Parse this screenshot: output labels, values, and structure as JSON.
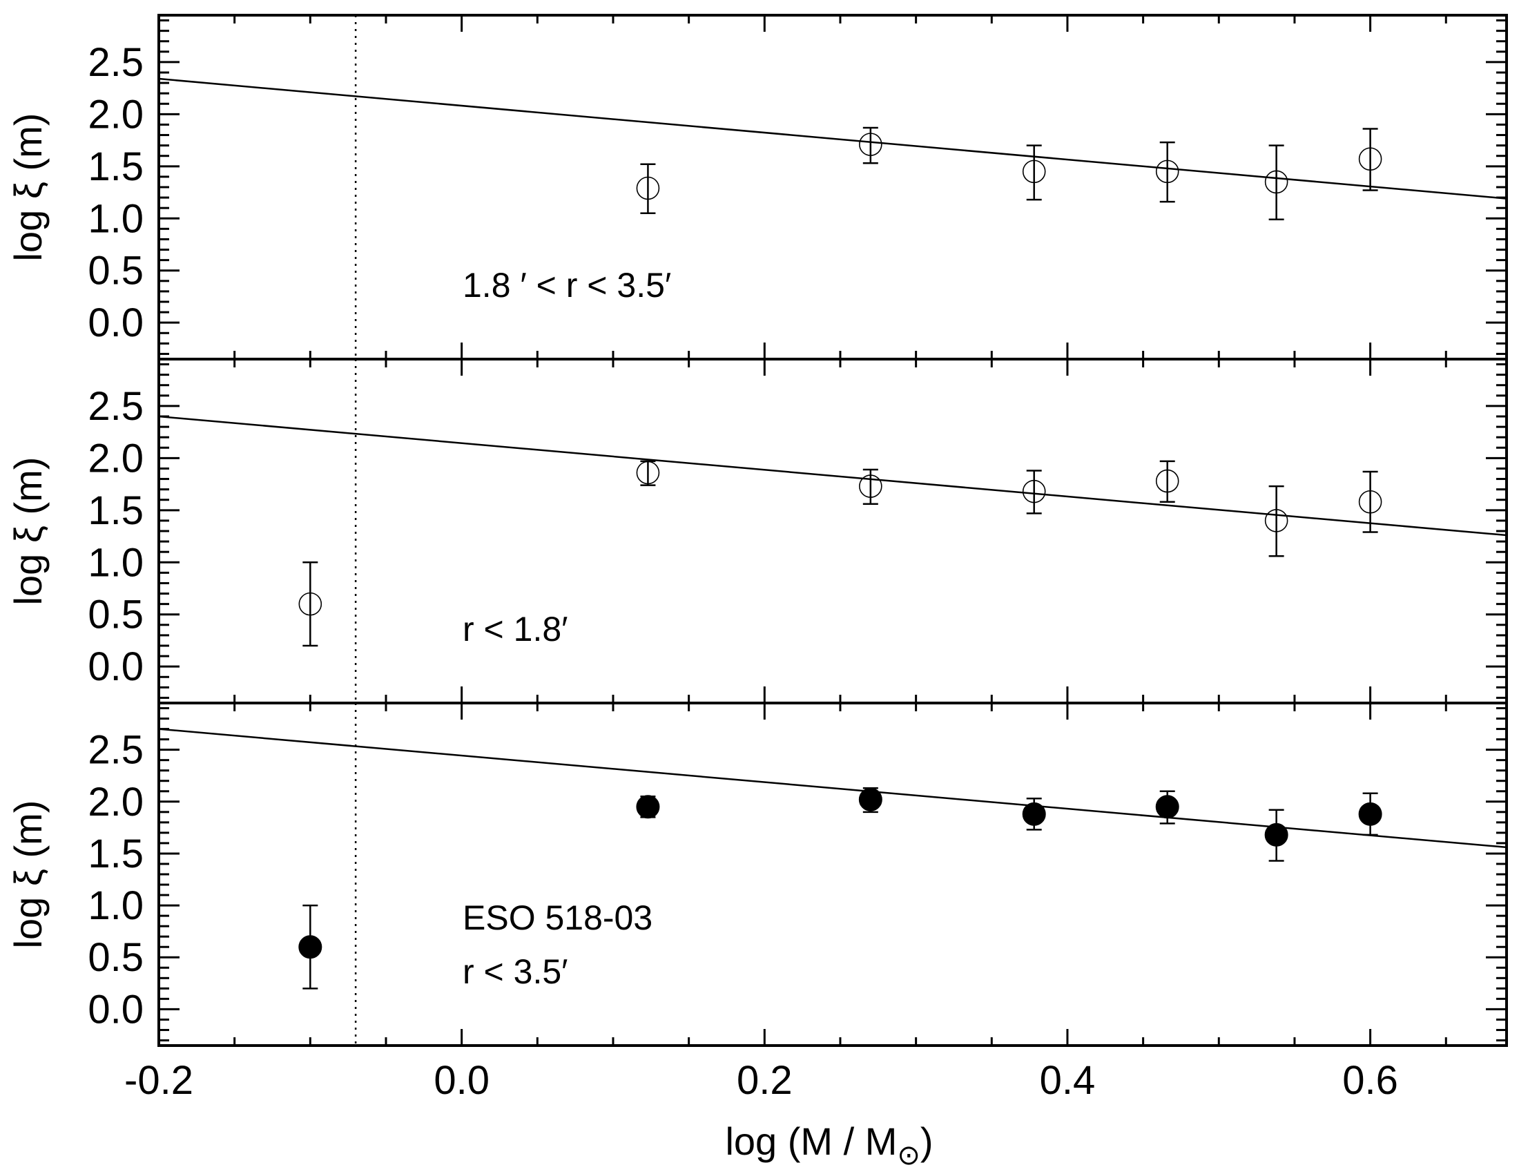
{
  "chart_data": {
    "type": "scatter",
    "x": [
      -0.1,
      0.123,
      0.27,
      0.378,
      0.466,
      0.538,
      0.6
    ],
    "xlabel": "log (M / M",
    "xlabel_sub": "⊙",
    "xlabel_close": ")",
    "xlim": [
      -0.2,
      0.69
    ],
    "xticks": [
      -0.2,
      0.0,
      0.2,
      0.4,
      0.6
    ],
    "xtick_labels": [
      "-0.2",
      "0.0",
      "0.2",
      "0.4",
      "0.6"
    ],
    "ylim": [
      -0.35,
      2.95
    ],
    "yticks": [
      0.0,
      0.5,
      1.0,
      1.5,
      2.0,
      2.5
    ],
    "ytick_labels": [
      "0.0",
      "0.5",
      "1.0",
      "1.5",
      "2.0",
      "2.5"
    ],
    "ylabel": "log ξ (m)",
    "vline_x": -0.07,
    "panels": [
      {
        "label_lines": [
          "1.8 ′ <  r  <  3.5′"
        ],
        "marker": "open",
        "points": [
          {
            "x": 0.123,
            "y": 1.29,
            "lo": 1.05,
            "hi": 1.52
          },
          {
            "x": 0.27,
            "y": 1.71,
            "lo": 1.53,
            "hi": 1.87
          },
          {
            "x": 0.378,
            "y": 1.45,
            "lo": 1.18,
            "hi": 1.7
          },
          {
            "x": 0.466,
            "y": 1.45,
            "lo": 1.16,
            "hi": 1.73
          },
          {
            "x": 0.538,
            "y": 1.35,
            "lo": 0.99,
            "hi": 1.7
          },
          {
            "x": 0.6,
            "y": 1.57,
            "lo": 1.27,
            "hi": 1.86
          }
        ],
        "fit": {
          "x0": -0.2,
          "y0": 2.34,
          "x1": 0.69,
          "y1": 1.19
        }
      },
      {
        "label_lines": [
          "r  <  1.8′"
        ],
        "marker": "open",
        "points": [
          {
            "x": -0.1,
            "y": 0.6,
            "lo": 0.2,
            "hi": 1.0
          },
          {
            "x": 0.123,
            "y": 1.86,
            "lo": 1.74,
            "hi": 1.97
          },
          {
            "x": 0.27,
            "y": 1.73,
            "lo": 1.56,
            "hi": 1.89
          },
          {
            "x": 0.378,
            "y": 1.68,
            "lo": 1.47,
            "hi": 1.88
          },
          {
            "x": 0.466,
            "y": 1.78,
            "lo": 1.58,
            "hi": 1.97
          },
          {
            "x": 0.538,
            "y": 1.4,
            "lo": 1.06,
            "hi": 1.73
          },
          {
            "x": 0.6,
            "y": 1.58,
            "lo": 1.29,
            "hi": 1.87
          }
        ],
        "fit": {
          "x0": -0.2,
          "y0": 2.4,
          "x1": 0.69,
          "y1": 1.26
        }
      },
      {
        "label_lines": [
          "ESO 518-03",
          "r  <  3.5′"
        ],
        "marker": "filled",
        "points": [
          {
            "x": -0.1,
            "y": 0.6,
            "lo": 0.2,
            "hi": 1.0
          },
          {
            "x": 0.123,
            "y": 1.95,
            "lo": 1.85,
            "hi": 2.05
          },
          {
            "x": 0.27,
            "y": 2.02,
            "lo": 1.9,
            "hi": 2.13
          },
          {
            "x": 0.378,
            "y": 1.88,
            "lo": 1.73,
            "hi": 2.03
          },
          {
            "x": 0.466,
            "y": 1.95,
            "lo": 1.79,
            "hi": 2.1
          },
          {
            "x": 0.538,
            "y": 1.68,
            "lo": 1.43,
            "hi": 1.92
          },
          {
            "x": 0.6,
            "y": 1.88,
            "lo": 1.68,
            "hi": 2.08
          }
        ],
        "fit": {
          "x0": -0.2,
          "y0": 2.7,
          "x1": 0.69,
          "y1": 1.56
        }
      }
    ]
  }
}
